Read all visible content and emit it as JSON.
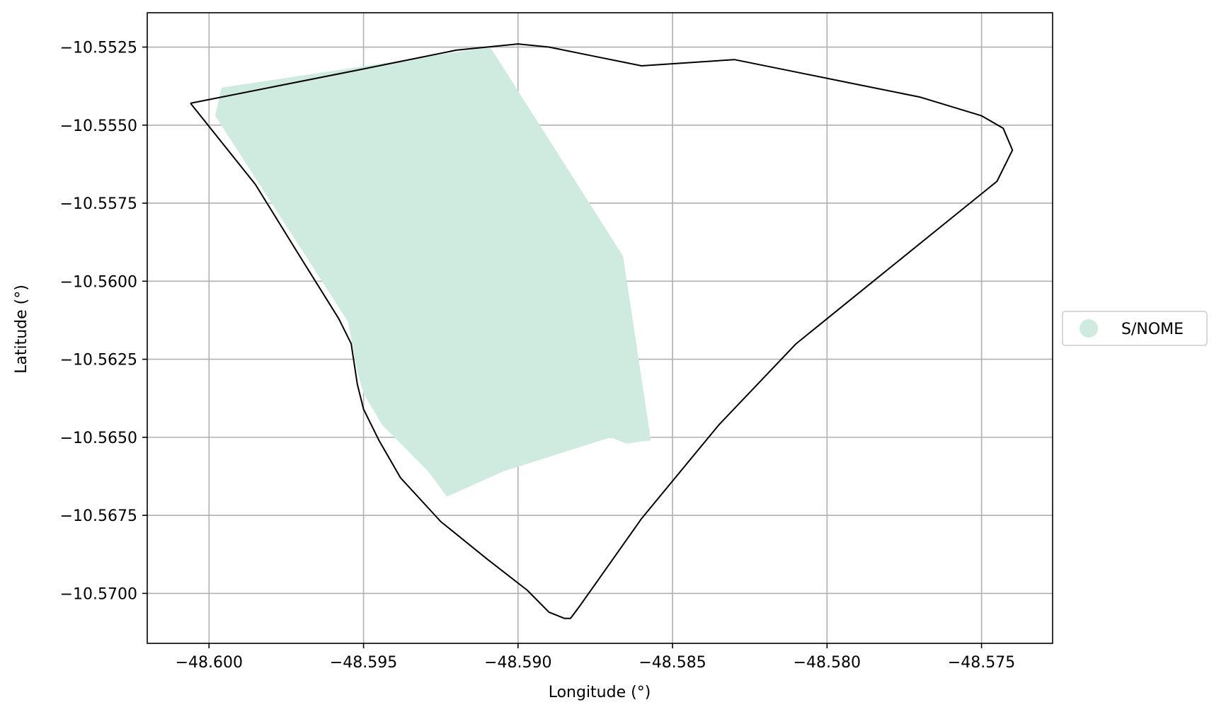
{
  "chart_data": {
    "type": "map",
    "title": "",
    "xlabel": "Longitude (°)",
    "ylabel": "Latitude (°)",
    "xlim": [
      -48.602,
      -48.5727
    ],
    "ylim": [
      -10.5716,
      -10.5514
    ],
    "grid": true,
    "x_ticks": [
      -48.6,
      -48.595,
      -48.59,
      -48.585,
      -48.58,
      -48.575
    ],
    "x_tick_labels": [
      "−48.600",
      "−48.595",
      "−48.590",
      "−48.585",
      "−48.580",
      "−48.575"
    ],
    "y_ticks": [
      -10.5525,
      -10.555,
      -10.5575,
      -10.56,
      -10.5625,
      -10.565,
      -10.5675,
      -10.57
    ],
    "y_tick_labels": [
      "−10.5525",
      "−10.5550",
      "−10.5575",
      "−10.5600",
      "−10.5625",
      "−10.5650",
      "−10.5675",
      "−10.5700"
    ],
    "legend": {
      "placement": "right",
      "entries": [
        {
          "label": "S/NOME",
          "color": "#cfeadf"
        }
      ]
    },
    "layers": [
      {
        "name": "S/NOME",
        "kind": "filled-polygon",
        "fill": "#cfeadf",
        "coordinates": [
          [
            -48.5996,
            -10.5538
          ],
          [
            -48.5909,
            -10.5525
          ],
          [
            -48.5866,
            -10.5592
          ],
          [
            -48.5857,
            -10.5651
          ],
          [
            -48.5865,
            -10.5652
          ],
          [
            -48.587,
            -10.565
          ],
          [
            -48.5905,
            -10.5661
          ],
          [
            -48.5923,
            -10.5669
          ],
          [
            -48.5929,
            -10.5661
          ],
          [
            -48.5944,
            -10.5646
          ],
          [
            -48.595,
            -10.5636
          ],
          [
            -48.5952,
            -10.5629
          ],
          [
            -48.5955,
            -10.5613
          ],
          [
            -48.5968,
            -10.5593
          ],
          [
            -48.5998,
            -10.5547
          ]
        ]
      },
      {
        "name": "boundary",
        "kind": "outline",
        "stroke": "#000000",
        "coordinates": [
          [
            -48.6006,
            -10.5543
          ],
          [
            -48.595,
            -10.5532
          ],
          [
            -48.592,
            -10.5526
          ],
          [
            -48.59,
            -10.5524
          ],
          [
            -48.589,
            -10.5525
          ],
          [
            -48.5875,
            -10.5528
          ],
          [
            -48.586,
            -10.5531
          ],
          [
            -48.5845,
            -10.553
          ],
          [
            -48.583,
            -10.5529
          ],
          [
            -48.581,
            -10.5533
          ],
          [
            -48.579,
            -10.5537
          ],
          [
            -48.577,
            -10.5541
          ],
          [
            -48.575,
            -10.5547
          ],
          [
            -48.5743,
            -10.5551
          ],
          [
            -48.574,
            -10.5558
          ],
          [
            -48.5745,
            -10.5568
          ],
          [
            -48.576,
            -10.558
          ],
          [
            -48.5785,
            -10.56
          ],
          [
            -48.581,
            -10.562
          ],
          [
            -48.5835,
            -10.5646
          ],
          [
            -48.586,
            -10.5676
          ],
          [
            -48.5875,
            -10.5697
          ],
          [
            -48.588,
            -10.5704
          ],
          [
            -48.5883,
            -10.5708
          ],
          [
            -48.5885,
            -10.5708
          ],
          [
            -48.589,
            -10.5706
          ],
          [
            -48.5897,
            -10.5699
          ],
          [
            -48.591,
            -10.5689
          ],
          [
            -48.5925,
            -10.5677
          ],
          [
            -48.5938,
            -10.5663
          ],
          [
            -48.5945,
            -10.5651
          ],
          [
            -48.595,
            -10.5641
          ],
          [
            -48.5952,
            -10.5633
          ],
          [
            -48.5954,
            -10.562
          ],
          [
            -48.5958,
            -10.5612
          ],
          [
            -48.597,
            -10.5593
          ],
          [
            -48.5985,
            -10.5569
          ],
          [
            -48.6006,
            -10.5543
          ]
        ]
      }
    ]
  }
}
